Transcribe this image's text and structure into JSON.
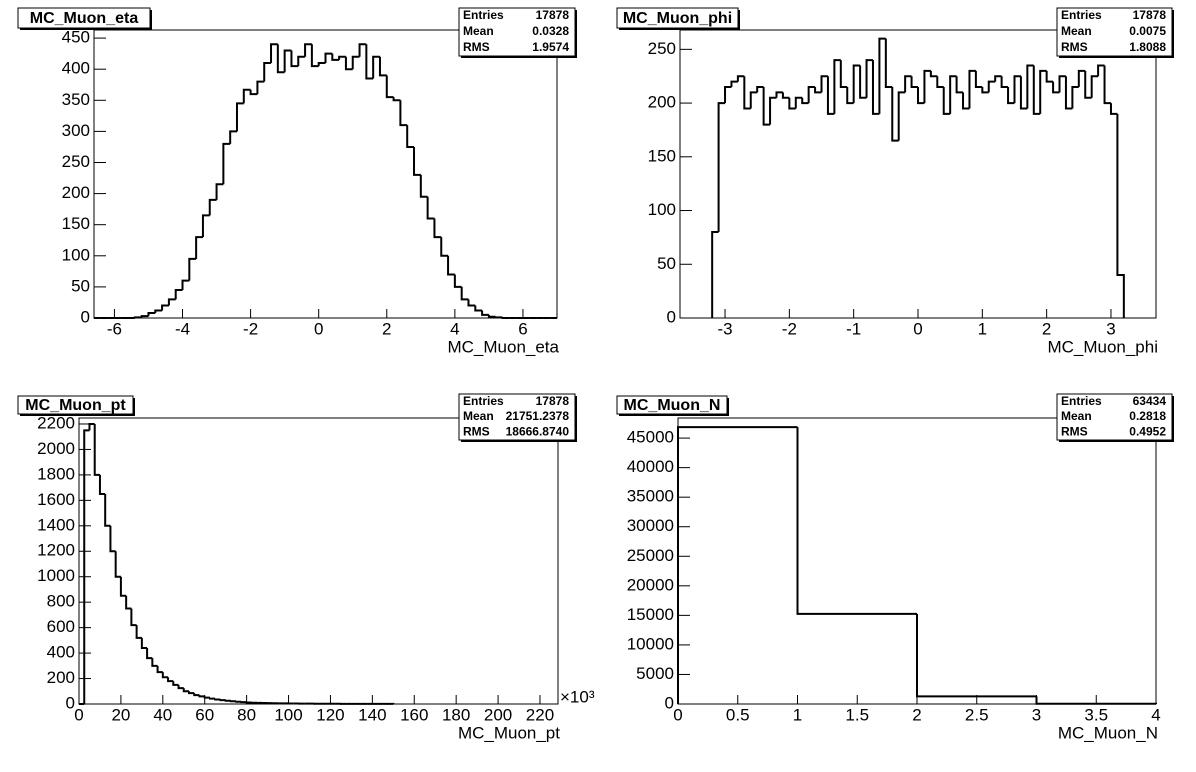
{
  "chart_data": [
    {
      "type": "histogram",
      "title": "MC_Muon_eta",
      "xlabel": "MC_Muon_eta",
      "stats": [
        {
          "label": "Entries",
          "value": "17878"
        },
        {
          "label": "Mean",
          "value": "0.0328"
        },
        {
          "label": "RMS",
          "value": "1.9574"
        }
      ],
      "bins": [
        -6.6,
        -6.4,
        -6.2,
        -6.0,
        -5.8,
        -5.6,
        -5.4,
        -5.2,
        -5.0,
        -4.8,
        -4.6,
        -4.4,
        -4.2,
        -4.0,
        -3.8,
        -3.6,
        -3.4,
        -3.2,
        -3.0,
        -2.8,
        -2.6,
        -2.4,
        -2.2,
        -2.0,
        -1.8,
        -1.6,
        -1.4,
        -1.2,
        -1.0,
        -0.8,
        -0.6,
        -0.4,
        -0.2,
        0.0,
        0.2,
        0.4,
        0.6,
        0.8,
        1.0,
        1.2,
        1.4,
        1.6,
        1.8,
        2.0,
        2.2,
        2.4,
        2.6,
        2.8,
        3.0,
        3.2,
        3.4,
        3.6,
        3.8,
        4.0,
        4.2,
        4.4,
        4.6,
        4.8,
        5.0,
        5.2,
        5.4,
        5.6,
        5.8,
        6.0,
        6.2,
        6.4,
        6.6,
        6.8,
        7.0
      ],
      "values": [
        0,
        0,
        0,
        0,
        0,
        0,
        1,
        3,
        8,
        12,
        20,
        30,
        45,
        60,
        95,
        130,
        165,
        190,
        215,
        280,
        300,
        345,
        367,
        360,
        380,
        410,
        440,
        395,
        430,
        405,
        420,
        440,
        405,
        410,
        425,
        415,
        420,
        400,
        420,
        440,
        385,
        420,
        390,
        355,
        350,
        310,
        275,
        230,
        195,
        160,
        130,
        100,
        70,
        50,
        30,
        20,
        12,
        5,
        2,
        1,
        0,
        0,
        0,
        0,
        0,
        0,
        0,
        0
      ],
      "xlim": [
        -6.6,
        7.0
      ],
      "ylim": [
        0,
        463
      ],
      "xticks": [
        -6,
        -4,
        -2,
        0,
        2,
        4,
        6
      ],
      "yticks": [
        0,
        50,
        100,
        150,
        200,
        250,
        300,
        350,
        400,
        450
      ]
    },
    {
      "type": "histogram",
      "title": "MC_Muon_phi",
      "xlabel": "MC_Muon_phi",
      "stats": [
        {
          "label": "Entries",
          "value": "17878"
        },
        {
          "label": "Mean",
          "value": "0.0075"
        },
        {
          "label": "RMS",
          "value": "1.8088"
        }
      ],
      "bins": [
        -3.2,
        -3.1,
        -3.0,
        -2.9,
        -2.8,
        -2.7,
        -2.6,
        -2.5,
        -2.4,
        -2.3,
        -2.2,
        -2.1,
        -2.0,
        -1.9,
        -1.8,
        -1.7,
        -1.6,
        -1.5,
        -1.4,
        -1.3,
        -1.2,
        -1.1,
        -1.0,
        -0.9,
        -0.8,
        -0.7,
        -0.6,
        -0.5,
        -0.4,
        -0.3,
        -0.2,
        -0.1,
        0.0,
        0.1,
        0.2,
        0.3,
        0.4,
        0.5,
        0.6,
        0.7,
        0.8,
        0.9,
        1.0,
        1.1,
        1.2,
        1.3,
        1.4,
        1.5,
        1.6,
        1.7,
        1.8,
        1.9,
        2.0,
        2.1,
        2.2,
        2.3,
        2.4,
        2.5,
        2.6,
        2.7,
        2.8,
        2.9,
        3.0,
        3.1,
        3.2
      ],
      "values": [
        80,
        200,
        215,
        220,
        225,
        195,
        210,
        215,
        180,
        205,
        210,
        205,
        195,
        205,
        200,
        215,
        210,
        225,
        190,
        240,
        215,
        200,
        235,
        205,
        240,
        190,
        260,
        215,
        165,
        210,
        225,
        215,
        200,
        230,
        225,
        215,
        190,
        225,
        210,
        195,
        230,
        215,
        210,
        220,
        225,
        215,
        200,
        225,
        195,
        235,
        190,
        230,
        220,
        210,
        225,
        195,
        215,
        230,
        205,
        225,
        235,
        200,
        190,
        40
      ],
      "xlim": [
        -3.7,
        3.7
      ],
      "ylim": [
        0,
        268
      ],
      "xticks": [
        -3,
        -2,
        -1,
        0,
        1,
        2,
        3
      ],
      "yticks": [
        0,
        50,
        100,
        150,
        200,
        250
      ]
    },
    {
      "type": "histogram",
      "title": "MC_Muon_pt",
      "xlabel": "MC_Muon_pt",
      "x_multiplier": "×10³",
      "stats": [
        {
          "label": "Entries",
          "value": "17878"
        },
        {
          "label": "Mean",
          "value": "21751.2378"
        },
        {
          "label": "RMS",
          "value": "18666.8740"
        }
      ],
      "bins": [
        0,
        2.5,
        5,
        7.5,
        10,
        12.5,
        15,
        17.5,
        20,
        22.5,
        25,
        27.5,
        30,
        32.5,
        35,
        37.5,
        40,
        42.5,
        45,
        47.5,
        50,
        52.5,
        55,
        57.5,
        60,
        62.5,
        65,
        67.5,
        70,
        72.5,
        75,
        77.5,
        80,
        82.5,
        85,
        87.5,
        90,
        92.5,
        95,
        97.5,
        100,
        102.5,
        105,
        107.5,
        110,
        112.5,
        115,
        117.5,
        120,
        122.5,
        125,
        127.5,
        130,
        132.5,
        135,
        137.5,
        140,
        142.5,
        145,
        147.5,
        150
      ],
      "values": [
        0,
        2150,
        2200,
        1800,
        1650,
        1400,
        1200,
        1000,
        850,
        750,
        620,
        520,
        440,
        360,
        300,
        250,
        210,
        180,
        150,
        125,
        100,
        85,
        70,
        60,
        50,
        42,
        35,
        30,
        26,
        22,
        18,
        15,
        12,
        10,
        9,
        8,
        7,
        6,
        5,
        5,
        4,
        4,
        3,
        3,
        3,
        2,
        2,
        2,
        2,
        2,
        1,
        1,
        1,
        1,
        1,
        1,
        1,
        1,
        1,
        1
      ],
      "xlim": [
        0,
        228.6
      ],
      "ylim": [
        0,
        2247
      ],
      "xticks": [
        0,
        20,
        40,
        60,
        80,
        100,
        120,
        140,
        160,
        180,
        200,
        220
      ],
      "yticks": [
        0,
        200,
        400,
        600,
        800,
        1000,
        1200,
        1400,
        1600,
        1800,
        2000,
        2200
      ]
    },
    {
      "type": "histogram",
      "title": "MC_Muon_N",
      "xlabel": "MC_Muon_N",
      "stats": [
        {
          "label": "Entries",
          "value": "63434"
        },
        {
          "label": "Mean",
          "value": "0.2818"
        },
        {
          "label": "RMS",
          "value": "0.4952"
        }
      ],
      "bins": [
        0,
        1,
        2,
        3,
        4
      ],
      "values": [
        46850,
        15250,
        1300,
        34
      ],
      "xlim": [
        0,
        4
      ],
      "ylim": [
        0,
        48400
      ],
      "xticks": [
        0,
        0.5,
        1,
        1.5,
        2,
        2.5,
        3,
        3.5,
        4
      ],
      "yticks": [
        0,
        5000,
        10000,
        15000,
        20000,
        25000,
        30000,
        35000,
        40000,
        45000
      ]
    }
  ]
}
